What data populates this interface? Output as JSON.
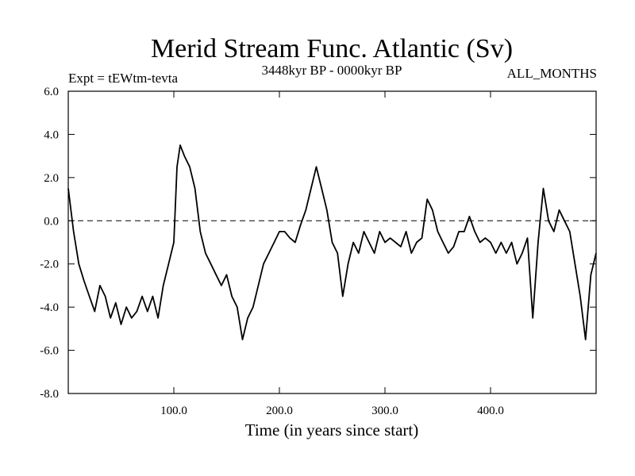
{
  "chart_data": {
    "type": "line",
    "title": "Merid Stream Func. Atlantic (Sv)",
    "subtitle_left": "Expt = tEWtm-tevta",
    "subtitle_center": "3448kyr BP - 0000kyr BP",
    "subtitle_right": "ALL_MONTHS",
    "xlabel": "Time (in years since start)",
    "ylabel": "",
    "xlim": [
      0,
      500
    ],
    "ylim": [
      -8,
      6
    ],
    "x_ticks": [
      100,
      200,
      300,
      400
    ],
    "x_tick_labels": [
      "100.0",
      "200.0",
      "300.0",
      "400.0"
    ],
    "y_ticks": [
      -8,
      -6,
      -4,
      -2,
      0,
      2,
      4,
      6
    ],
    "y_tick_labels": [
      "-8.0",
      "-6.0",
      "-4.0",
      "-2.0",
      "0.0",
      "2.0",
      "4.0",
      "6.0"
    ],
    "reference_line": 0,
    "series": [
      {
        "name": "Merid Stream Func. Atlantic",
        "x": [
          0,
          5,
          10,
          15,
          20,
          25,
          30,
          35,
          40,
          45,
          50,
          55,
          60,
          65,
          70,
          75,
          80,
          85,
          90,
          95,
          100,
          103,
          106,
          110,
          115,
          120,
          125,
          130,
          135,
          140,
          145,
          150,
          155,
          160,
          165,
          170,
          175,
          180,
          185,
          190,
          195,
          200,
          205,
          210,
          215,
          220,
          225,
          230,
          235,
          240,
          245,
          250,
          255,
          260,
          265,
          270,
          275,
          280,
          285,
          290,
          295,
          300,
          305,
          310,
          315,
          320,
          325,
          330,
          335,
          340,
          345,
          350,
          355,
          360,
          365,
          370,
          375,
          380,
          385,
          390,
          395,
          400,
          405,
          410,
          415,
          420,
          425,
          430,
          435,
          440,
          445,
          450,
          455,
          460,
          465,
          470,
          475,
          480,
          485,
          490,
          495,
          500
        ],
        "values": [
          1.5,
          -0.5,
          -2.0,
          -2.8,
          -3.5,
          -4.2,
          -3.0,
          -3.5,
          -4.5,
          -3.8,
          -4.8,
          -4.0,
          -4.5,
          -4.2,
          -3.5,
          -4.2,
          -3.5,
          -4.5,
          -3.0,
          -2.0,
          -1.0,
          2.5,
          3.5,
          3.0,
          2.5,
          1.5,
          -0.5,
          -1.5,
          -2.0,
          -2.5,
          -3.0,
          -2.5,
          -3.5,
          -4.0,
          -5.5,
          -4.5,
          -4.0,
          -3.0,
          -2.0,
          -1.5,
          -1.0,
          -0.5,
          -0.5,
          -0.8,
          -1.0,
          -0.2,
          0.5,
          1.5,
          2.5,
          1.5,
          0.5,
          -1.0,
          -1.5,
          -3.5,
          -2.0,
          -1.0,
          -1.5,
          -0.5,
          -1.0,
          -1.5,
          -0.5,
          -1.0,
          -0.8,
          -1.0,
          -1.2,
          -0.5,
          -1.5,
          -1.0,
          -0.8,
          1.0,
          0.5,
          -0.5,
          -1.0,
          -1.5,
          -1.2,
          -0.5,
          -0.5,
          0.2,
          -0.5,
          -1.0,
          -0.8,
          -1.0,
          -1.5,
          -1.0,
          -1.5,
          -1.0,
          -2.0,
          -1.5,
          -0.8,
          -4.5,
          -1.0,
          1.5,
          0.0,
          -0.5,
          0.5,
          0.0,
          -0.5,
          -2.0,
          -3.5,
          -5.5,
          -2.5,
          -1.5
        ]
      }
    ]
  }
}
